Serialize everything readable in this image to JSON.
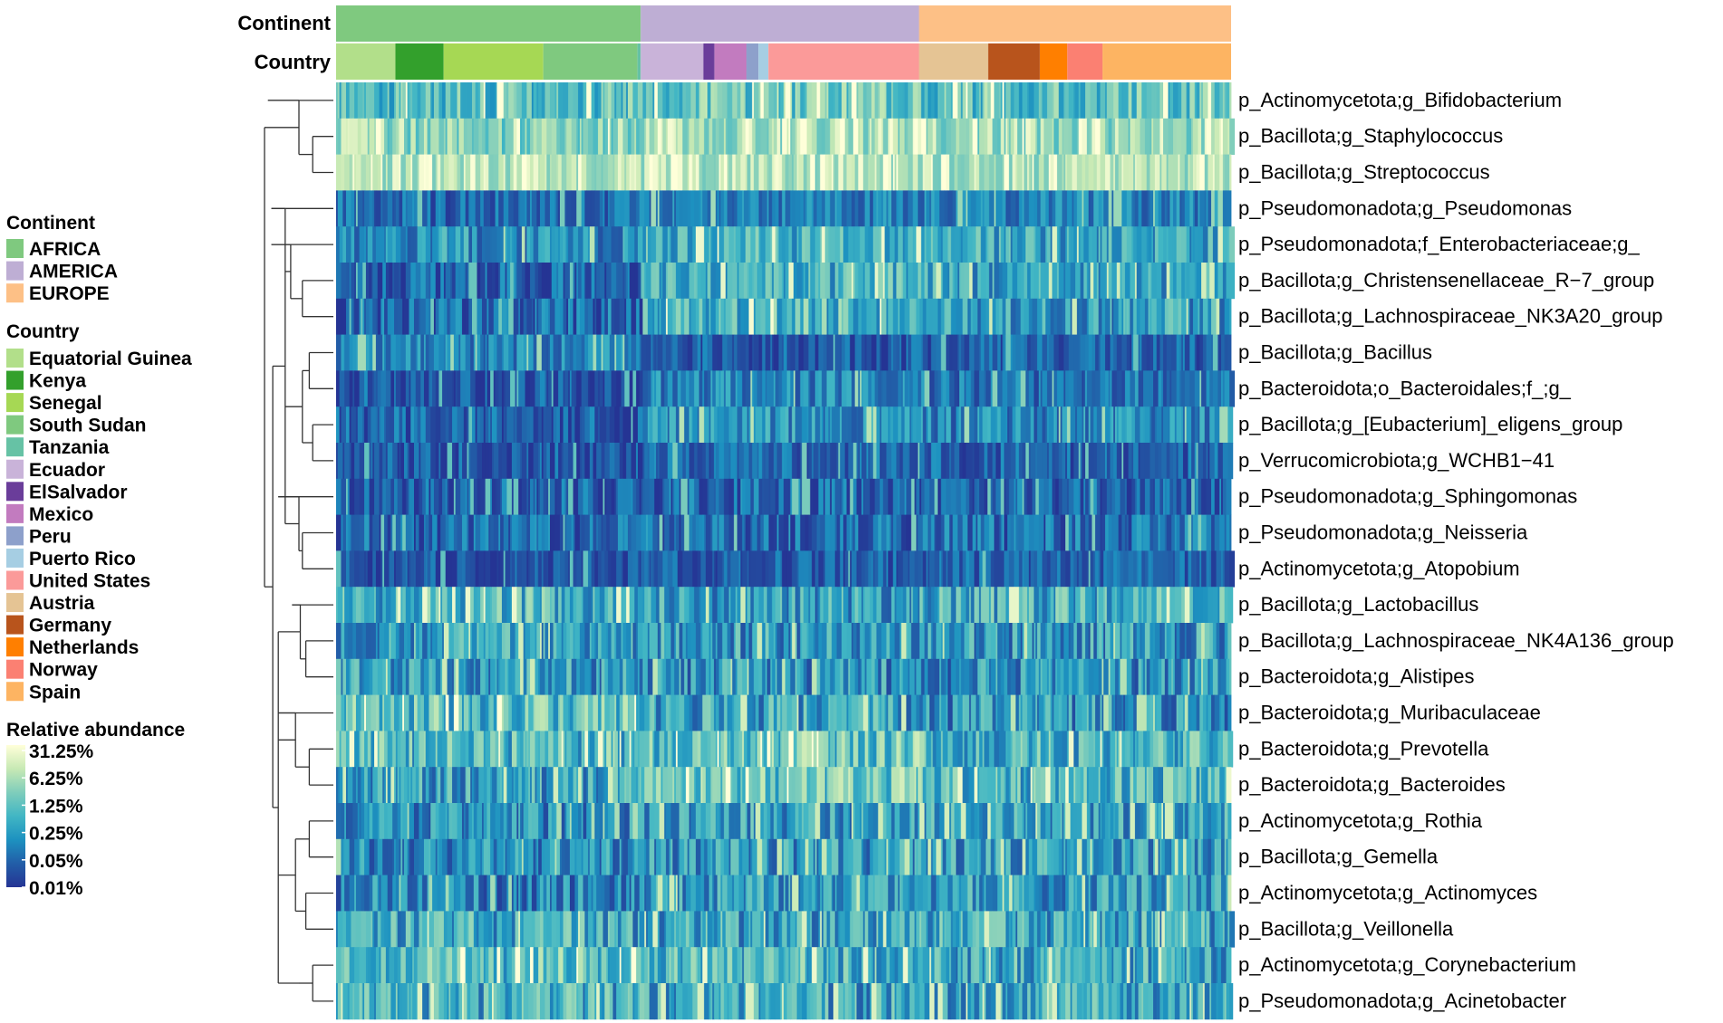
{
  "chart_data": {
    "type": "heatmap",
    "title": "",
    "value_label": "Relative abundance",
    "annotation_rows": [
      {
        "name": "Continent",
        "key": "continent"
      },
      {
        "name": "Country",
        "key": "country"
      }
    ],
    "continents": [
      {
        "name": "AFRICA",
        "color": "#7fc97f"
      },
      {
        "name": "AMERICA",
        "color": "#beaed4"
      },
      {
        "name": "EUROPE",
        "color": "#fdc086"
      }
    ],
    "countries": [
      {
        "name": "Equatorial Guinea",
        "continent": "AFRICA",
        "color": "#b2df8a",
        "share": 0.0665
      },
      {
        "name": "Kenya",
        "continent": "AFRICA",
        "color": "#33a02c",
        "share": 0.054
      },
      {
        "name": "Senegal",
        "continent": "AFRICA",
        "color": "#a6d854",
        "share": 0.1117
      },
      {
        "name": "South Sudan",
        "continent": "AFRICA",
        "color": "#7fc97f",
        "share": 0.1055
      },
      {
        "name": "Tanzania",
        "continent": "AFRICA",
        "color": "#66c2a5",
        "share": 0.0037
      },
      {
        "name": "Ecuador",
        "continent": "AMERICA",
        "color": "#c9b3d9",
        "share": 0.0702
      },
      {
        "name": "ElSalvador",
        "continent": "AMERICA",
        "color": "#6a3d9a",
        "share": 0.0124
      },
      {
        "name": "Mexico",
        "continent": "AMERICA",
        "color": "#c27bbf",
        "share": 0.0359
      },
      {
        "name": "Peru",
        "continent": "AMERICA",
        "color": "#8da0cb",
        "share": 0.0135
      },
      {
        "name": "Puerto Rico",
        "continent": "AMERICA",
        "color": "#a6cee3",
        "share": 0.0111
      },
      {
        "name": "United States",
        "continent": "AMERICA",
        "color": "#fb9a99",
        "share": 0.1688
      },
      {
        "name": "Austria",
        "continent": "EUROPE",
        "color": "#e5c494",
        "share": 0.0775
      },
      {
        "name": "Germany",
        "continent": "EUROPE",
        "color": "#b8541c",
        "share": 0.0579
      },
      {
        "name": "Netherlands",
        "continent": "EUROPE",
        "color": "#ff7f00",
        "share": 0.0308
      },
      {
        "name": "Norway",
        "continent": "EUROPE",
        "color": "#fb8072",
        "share": 0.0394
      },
      {
        "name": "Spain",
        "continent": "EUROPE",
        "color": "#fdb462",
        "share": 0.1441
      }
    ],
    "color_scale": {
      "ticks": [
        "31.25%",
        "6.25%",
        "1.25%",
        "0.25%",
        "0.05%",
        "0.01%"
      ],
      "colors": [
        "#ffffd9",
        "#c7e9b4",
        "#7fcdbb",
        "#41b6c4",
        "#1d91c0",
        "#225ea8",
        "#253494"
      ],
      "transform": "log5"
    },
    "rows": [
      {
        "taxon": "p_Actinomycetota;g_Bifidobacterium",
        "profile": [
          0.55,
          0.62,
          0.58
        ],
        "noise": 0.24
      },
      {
        "taxon": "p_Bacillota;g_Staphylococcus",
        "profile": [
          0.7,
          0.78,
          0.74
        ],
        "noise": 0.22
      },
      {
        "taxon": "p_Bacillota;g_Streptococcus",
        "profile": [
          0.82,
          0.8,
          0.8
        ],
        "noise": 0.18
      },
      {
        "taxon": "p_Pseudomonadota;g_Pseudomonas",
        "profile": [
          0.2,
          0.3,
          0.28
        ],
        "noise": 0.18
      },
      {
        "taxon": "p_Pseudomonadota;f_Enterobacteriaceae;g_",
        "profile": [
          0.35,
          0.5,
          0.45
        ],
        "noise": 0.24
      },
      {
        "taxon": "p_Bacillota;g_Christensenellaceae_R−7_group",
        "profile": [
          0.16,
          0.48,
          0.42
        ],
        "noise": 0.24
      },
      {
        "taxon": "p_Bacillota;g_Lachnospiraceae_NK3A20_group",
        "profile": [
          0.18,
          0.52,
          0.4
        ],
        "noise": 0.26
      },
      {
        "taxon": "p_Bacillota;g_Bacillus",
        "profile": [
          0.3,
          0.14,
          0.16
        ],
        "noise": 0.18
      },
      {
        "taxon": "p_Bacteroidota;o_Bacteroidales;f_;g_",
        "profile": [
          0.14,
          0.3,
          0.24
        ],
        "noise": 0.2
      },
      {
        "taxon": "p_Bacillota;g_[Eubacterium]_eligens_group",
        "profile": [
          0.15,
          0.35,
          0.3
        ],
        "noise": 0.22
      },
      {
        "taxon": "p_Verrucomicrobiota;g_WCHB1−41",
        "profile": [
          0.14,
          0.2,
          0.18
        ],
        "noise": 0.18
      },
      {
        "taxon": "p_Pseudomonadota;g_Sphingomonas",
        "profile": [
          0.16,
          0.2,
          0.18
        ],
        "noise": 0.2
      },
      {
        "taxon": "p_Pseudomonadota;g_Neisseria",
        "profile": [
          0.18,
          0.22,
          0.22
        ],
        "noise": 0.22
      },
      {
        "taxon": "p_Actinomycetota;g_Atopobium",
        "profile": [
          0.14,
          0.16,
          0.18
        ],
        "noise": 0.16
      },
      {
        "taxon": "p_Bacillota;g_Lactobacillus",
        "profile": [
          0.5,
          0.4,
          0.48
        ],
        "noise": 0.28
      },
      {
        "taxon": "p_Bacillota;g_Lachnospiraceae_NK4A136_group",
        "profile": [
          0.42,
          0.4,
          0.38
        ],
        "noise": 0.28
      },
      {
        "taxon": "p_Bacteroidota;g_Alistipes",
        "profile": [
          0.4,
          0.36,
          0.34
        ],
        "noise": 0.28
      },
      {
        "taxon": "p_Bacteroidota;g_Muribaculaceae",
        "profile": [
          0.55,
          0.42,
          0.36
        ],
        "noise": 0.28
      },
      {
        "taxon": "p_Bacteroidota;g_Prevotella",
        "profile": [
          0.52,
          0.58,
          0.5
        ],
        "noise": 0.28
      },
      {
        "taxon": "p_Bacteroidota;g_Bacteroides",
        "profile": [
          0.42,
          0.6,
          0.5
        ],
        "noise": 0.28
      },
      {
        "taxon": "p_Actinomycetota;g_Rothia",
        "profile": [
          0.32,
          0.4,
          0.42
        ],
        "noise": 0.26
      },
      {
        "taxon": "p_Bacillota;g_Gemella",
        "profile": [
          0.34,
          0.38,
          0.4
        ],
        "noise": 0.26
      },
      {
        "taxon": "p_Actinomycetota;g_Actinomyces",
        "profile": [
          0.3,
          0.4,
          0.4
        ],
        "noise": 0.26
      },
      {
        "taxon": "p_Bacillota;g_Veillonella",
        "profile": [
          0.45,
          0.44,
          0.44
        ],
        "noise": 0.28
      },
      {
        "taxon": "p_Actinomycetota;g_Corynebacterium",
        "profile": [
          0.55,
          0.5,
          0.46
        ],
        "noise": 0.28
      },
      {
        "taxon": "p_Pseudomonadota;g_Acinetobacter",
        "profile": [
          0.46,
          0.44,
          0.44
        ],
        "noise": 0.28
      }
    ],
    "row_dendrogram": "hierarchical clustering of taxa",
    "n_sample_columns": 540
  }
}
